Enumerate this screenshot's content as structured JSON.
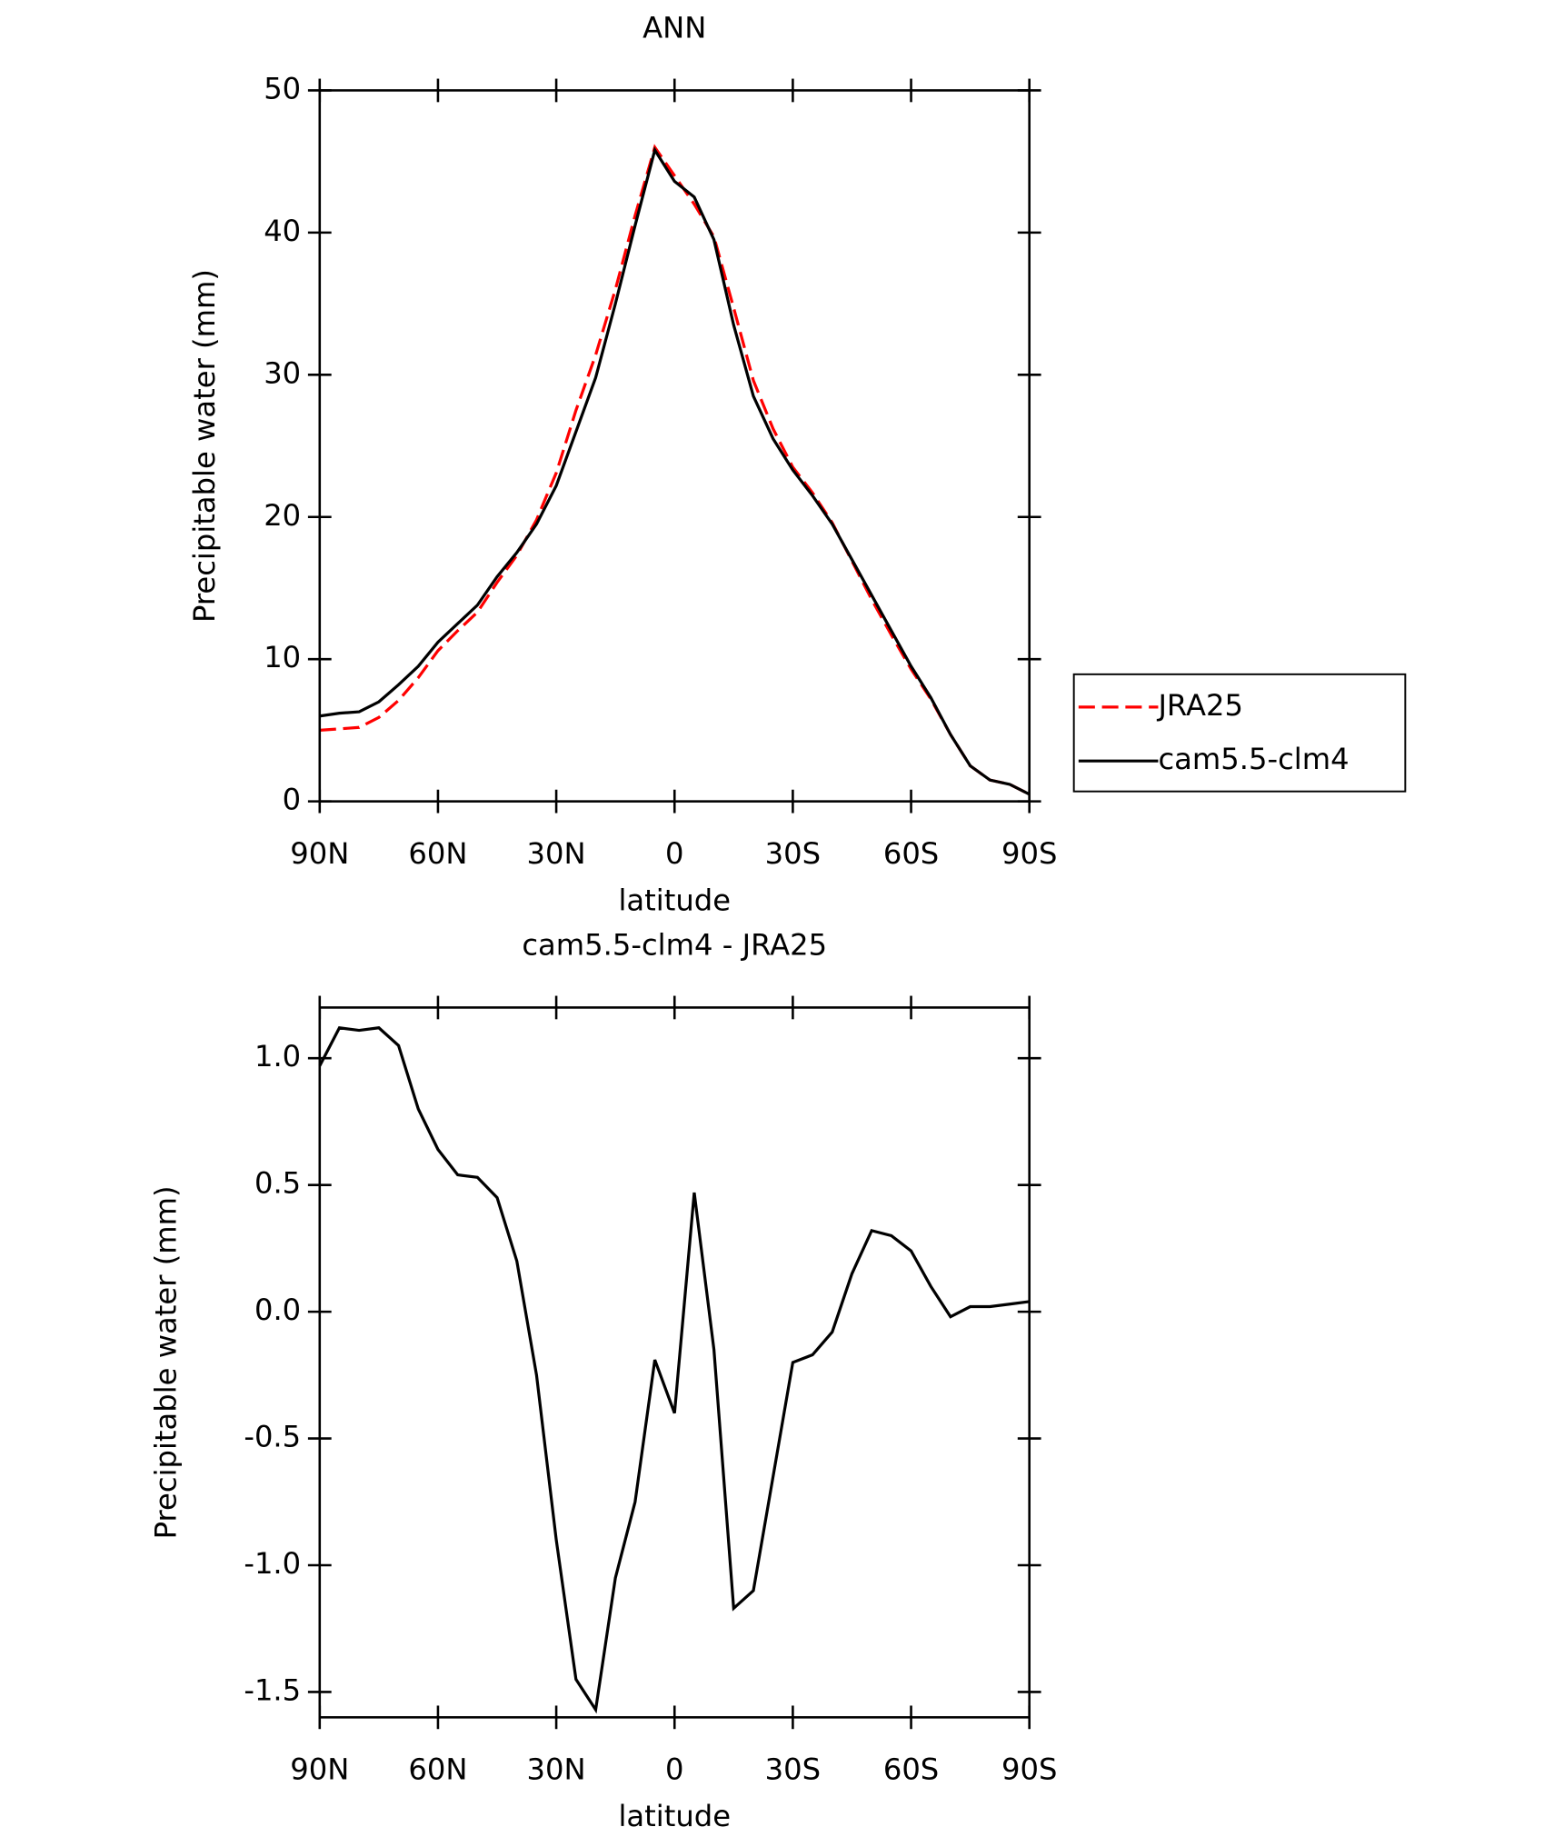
{
  "chart_data": [
    {
      "type": "line",
      "title": "ANN",
      "x_label": "latitude",
      "y_label": "Precipitable water (mm)",
      "x": [
        90,
        85,
        80,
        75,
        70,
        65,
        60,
        55,
        50,
        45,
        40,
        35,
        30,
        25,
        20,
        15,
        10,
        5,
        0,
        -5,
        -10,
        -15,
        -20,
        -25,
        -30,
        -35,
        -40,
        -45,
        -50,
        -55,
        -60,
        -65,
        -70,
        -75,
        -80,
        -85,
        -90
      ],
      "series": [
        {
          "name": "JRA25",
          "color": "#ff0000",
          "dashed": true,
          "values": [
            5.0,
            5.1,
            5.2,
            5.9,
            7.1,
            8.7,
            10.6,
            12.0,
            13.3,
            15.4,
            17.3,
            19.8,
            23.1,
            27.5,
            31.4,
            36.0,
            41.2,
            46.0,
            44.0,
            42.0,
            39.7,
            34.7,
            29.6,
            26.2,
            23.5,
            21.7,
            19.6,
            16.9,
            14.2,
            11.7,
            9.3,
            7.2,
            4.7,
            2.5,
            1.5,
            1.2,
            0.5
          ]
        },
        {
          "name": "cam5.5-clm4",
          "color": "#000000",
          "dashed": false,
          "values": [
            6.0,
            6.2,
            6.3,
            7.0,
            8.2,
            9.5,
            11.2,
            12.5,
            13.8,
            15.8,
            17.5,
            19.5,
            22.2,
            26.0,
            29.8,
            35.0,
            40.5,
            45.8,
            43.6,
            42.5,
            39.5,
            33.5,
            28.5,
            25.5,
            23.3,
            21.5,
            19.5,
            17.0,
            14.5,
            12.0,
            9.5,
            7.3,
            4.7,
            2.5,
            1.5,
            1.2,
            0.5
          ]
        }
      ],
      "xlim": [
        90,
        -90
      ],
      "xticks": [
        {
          "value": 90,
          "label": "90N"
        },
        {
          "value": 60,
          "label": "60N"
        },
        {
          "value": 30,
          "label": "30N"
        },
        0,
        {
          "value": -30,
          "label": "30S"
        },
        {
          "value": -60,
          "label": "60S"
        },
        {
          "value": -90,
          "label": "90S"
        }
      ],
      "ylim": [
        0,
        50
      ],
      "yticks": [
        0,
        10,
        20,
        30,
        40,
        50
      ],
      "legend": "right"
    },
    {
      "type": "line",
      "title": "cam5.5-clm4 - JRA25",
      "x_label": "latitude",
      "y_label": "Precipitable water (mm)",
      "x": [
        90,
        85,
        80,
        75,
        70,
        65,
        60,
        55,
        50,
        45,
        40,
        35,
        30,
        25,
        20,
        15,
        10,
        5,
        0,
        -5,
        -10,
        -15,
        -20,
        -25,
        -30,
        -35,
        -40,
        -45,
        -50,
        -55,
        -60,
        -65,
        -70,
        -75,
        -80,
        -85,
        -90
      ],
      "color": "#000000",
      "values": [
        0.97,
        1.12,
        1.11,
        1.12,
        1.05,
        0.8,
        0.64,
        0.54,
        0.53,
        0.45,
        0.2,
        -0.25,
        -0.9,
        -1.45,
        -1.57,
        -1.05,
        -0.75,
        -0.19,
        -0.4,
        0.47,
        -0.15,
        -1.17,
        -1.1,
        -0.65,
        -0.2,
        -0.17,
        -0.08,
        0.15,
        0.32,
        0.3,
        0.24,
        0.1,
        -0.02,
        0.02,
        0.02,
        0.03,
        0.04
      ],
      "xlim": [
        90,
        -90
      ],
      "xticks": [
        {
          "value": 90,
          "label": "90N"
        },
        {
          "value": 60,
          "label": "60N"
        },
        {
          "value": 30,
          "label": "30N"
        },
        0,
        {
          "value": -30,
          "label": "30S"
        },
        {
          "value": -60,
          "label": "60S"
        },
        {
          "value": -90,
          "label": "90S"
        }
      ],
      "ylim": [
        -1.6,
        1.2
      ],
      "yticks": [
        -1.5,
        {
          "value": -1.0,
          "label": "-1.0"
        },
        -0.5,
        {
          "value": 0.0,
          "label": "0.0"
        },
        0.5,
        {
          "value": 1.0,
          "label": "1.0"
        }
      ]
    }
  ]
}
